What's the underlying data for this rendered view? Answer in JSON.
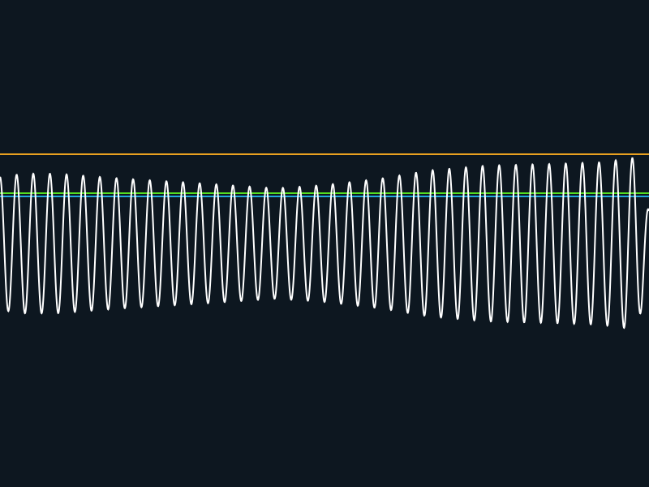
{
  "theme": {
    "background": "#0d1720",
    "signal_color": "#ffffff",
    "orange_line_color": "#e8a020",
    "green_line_color": "#55dd22",
    "cyan_line_color": "#22aadd"
  },
  "chart_data": {
    "type": "line",
    "title": "",
    "xlabel": "",
    "ylabel": "",
    "grid": false,
    "legend": "none",
    "xlim": [
      0,
      800
    ],
    "ylim": [
      -300,
      300
    ],
    "series": [
      {
        "kind": "oscillation",
        "color": "#ffffff",
        "center": 0,
        "cycles": 39,
        "x_start": 0,
        "x_end": 800,
        "envelope": [
          {
            "x": 0,
            "amp": 82
          },
          {
            "x": 30,
            "amp": 86
          },
          {
            "x": 70,
            "amp": 86
          },
          {
            "x": 150,
            "amp": 80
          },
          {
            "x": 250,
            "amp": 74
          },
          {
            "x": 340,
            "amp": 68
          },
          {
            "x": 400,
            "amp": 72
          },
          {
            "x": 470,
            "amp": 80
          },
          {
            "x": 530,
            "amp": 90
          },
          {
            "x": 600,
            "amp": 96
          },
          {
            "x": 680,
            "amp": 98
          },
          {
            "x": 740,
            "amp": 100
          },
          {
            "x": 785,
            "amp": 106
          },
          {
            "x": 800,
            "amp": 40
          }
        ]
      }
    ],
    "reference_lines": [
      {
        "name": "upper-line",
        "y": 110,
        "color": "#e8a020"
      },
      {
        "name": "green-line",
        "y": 62,
        "color": "#55dd22"
      },
      {
        "name": "cyan-line",
        "y": 58,
        "color": "#22aadd"
      }
    ]
  }
}
